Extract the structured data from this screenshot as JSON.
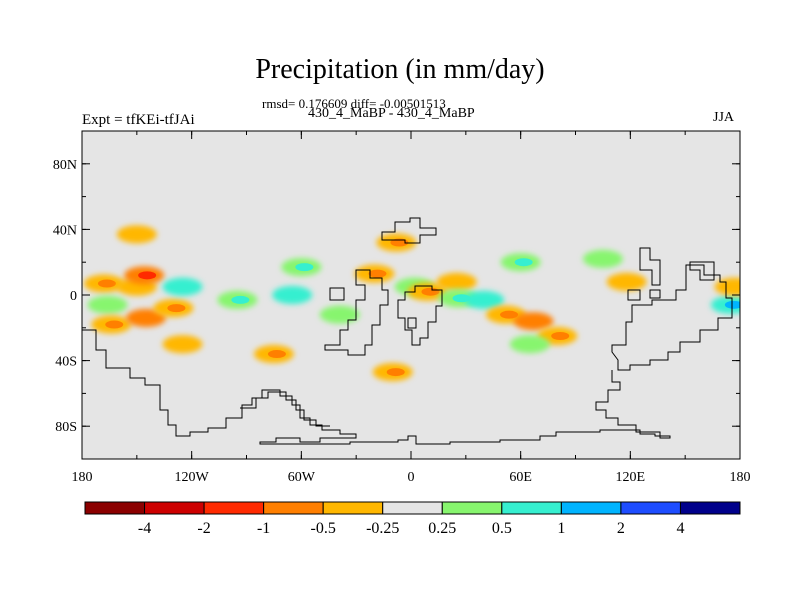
{
  "title": "Precipitation (in mm/day)",
  "stats": "rmsd= 0.176609 diff= -0.00501513",
  "cases": "430_4_MaBP - 430_4_MaBP",
  "experiment": "Expt = tfKEi-tfJAi",
  "season": "JJA",
  "colors": {
    "background": "#e5e5e5",
    "levels": [
      "#8b0000",
      "#cd0000",
      "#ff2a00",
      "#ff7f00",
      "#ffb700",
      "#e5e5e5",
      "#87f56e",
      "#36efd0",
      "#00b4ff",
      "#1e4dff",
      "#00008b"
    ]
  },
  "axes": {
    "y_ticks": [
      "80N",
      "40N",
      "0",
      "40S",
      "80S"
    ],
    "x_ticks": [
      "180",
      "120W",
      "60W",
      "0",
      "60E",
      "120E",
      "180"
    ]
  },
  "colorbar": {
    "labels": [
      "-4",
      "-2",
      "-1",
      "-0.5",
      "-0.25",
      "0.25",
      "0.5",
      "1",
      "2",
      "4"
    ]
  },
  "anomaly_cells": [
    {
      "lon": -168,
      "lat": 7,
      "level": 4
    },
    {
      "lon": -150,
      "lat": 5,
      "level": 4
    },
    {
      "lon": -146,
      "lat": 12,
      "level": 3
    },
    {
      "lon": -166,
      "lat": -6,
      "level": 6
    },
    {
      "lon": -164,
      "lat": -18,
      "level": 4
    },
    {
      "lon": -145,
      "lat": -14,
      "level": 3
    },
    {
      "lon": -130,
      "lat": -8,
      "level": 4
    },
    {
      "lon": -125,
      "lat": 5,
      "level": 7
    },
    {
      "lon": -95,
      "lat": -3,
      "level": 6
    },
    {
      "lon": -65,
      "lat": 0,
      "level": 7
    },
    {
      "lon": -75,
      "lat": -36,
      "level": 4
    },
    {
      "lon": -125,
      "lat": -30,
      "level": 4
    },
    {
      "lon": -60,
      "lat": 17,
      "level": 6
    },
    {
      "lon": -39,
      "lat": -12,
      "level": 6
    },
    {
      "lon": -20,
      "lat": 13,
      "level": 4
    },
    {
      "lon": 2,
      "lat": 5,
      "level": 6
    },
    {
      "lon": 9,
      "lat": 2,
      "level": 4
    },
    {
      "lon": 25,
      "lat": 8,
      "level": 4
    },
    {
      "lon": 26,
      "lat": -2,
      "level": 6
    },
    {
      "lon": 40,
      "lat": -3,
      "level": 7
    },
    {
      "lon": 52,
      "lat": -12,
      "level": 4
    },
    {
      "lon": 67,
      "lat": -16,
      "level": 3
    },
    {
      "lon": 80,
      "lat": -25,
      "level": 4
    },
    {
      "lon": 65,
      "lat": -30,
      "level": 6
    },
    {
      "lon": -10,
      "lat": -47,
      "level": 4
    },
    {
      "lon": 118,
      "lat": 8,
      "level": 4
    },
    {
      "lon": 175,
      "lat": -6,
      "level": 7
    },
    {
      "lon": 177,
      "lat": 5,
      "level": 4
    },
    {
      "lon": 60,
      "lat": 20,
      "level": 6
    },
    {
      "lon": 105,
      "lat": 22,
      "level": 6
    },
    {
      "lon": -8,
      "lat": 32,
      "level": 4
    },
    {
      "lon": -150,
      "lat": 37,
      "level": 4
    }
  ]
}
